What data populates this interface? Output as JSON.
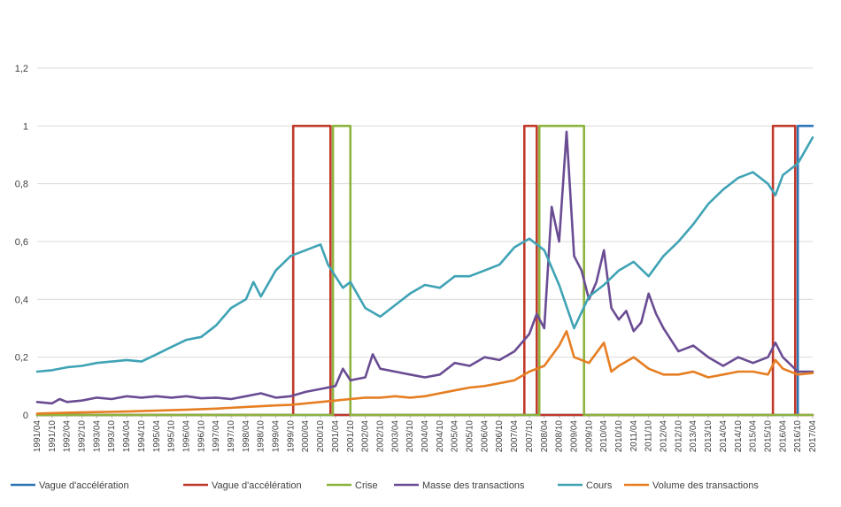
{
  "chart_data": {
    "type": "line",
    "title": "",
    "xlabel": "",
    "ylabel": "",
    "ylim": [
      0,
      1.2
    ],
    "yticks": [
      "0",
      "0,2",
      "0,4",
      "0,6",
      "0,8",
      "1",
      "1,2"
    ],
    "y_tick_values": [
      0,
      0.2,
      0.4,
      0.6,
      0.8,
      1.0,
      1.2
    ],
    "grid": "horizontal",
    "legend_position": "bottom",
    "x_start": "1991/04",
    "x_end": "2017/04",
    "x_tick_labels": [
      "1991/04",
      "1991/10",
      "1992/04",
      "1992/10",
      "1993/04",
      "1993/10",
      "1994/04",
      "1994/10",
      "1995/04",
      "1995/10",
      "1996/04",
      "1996/10",
      "1997/04",
      "1997/10",
      "1998/04",
      "1998/10",
      "1999/04",
      "1999/10",
      "2000/04",
      "2000/10",
      "2001/04",
      "2001/10",
      "2002/04",
      "2002/10",
      "2003/04",
      "2003/10",
      "2004/04",
      "2004/10",
      "2005/04",
      "2005/10",
      "2006/04",
      "2006/10",
      "2007/04",
      "2007/10",
      "2008/04",
      "2008/10",
      "2009/04",
      "2009/10",
      "2010/04",
      "2010/10",
      "2011/04",
      "2011/10",
      "2012/04",
      "2012/10",
      "2013/04",
      "2013/10",
      "2014/04",
      "2014/10",
      "2015/04",
      "2015/10",
      "2016/04",
      "2016/10",
      "2017/04"
    ],
    "series": [
      {
        "name": "Vague d'accélération",
        "color": "#2e75b6",
        "style": "step",
        "points": [
          [
            "1991/04",
            0
          ],
          [
            "2016/10",
            0
          ],
          [
            "2016/10",
            1
          ],
          [
            "2017/04",
            1
          ]
        ]
      },
      {
        "name": "Vague d'accélération",
        "color": "#c0392b",
        "style": "step",
        "points": [
          [
            "1991/04",
            0
          ],
          [
            "1999/11",
            0
          ],
          [
            "1999/11",
            1
          ],
          [
            "2001/02",
            1
          ],
          [
            "2001/02",
            0
          ],
          [
            "2007/08",
            0
          ],
          [
            "2007/08",
            1
          ],
          [
            "2008/01",
            1
          ],
          [
            "2008/01",
            0
          ],
          [
            "2015/12",
            0
          ],
          [
            "2015/12",
            1
          ],
          [
            "2016/09",
            1
          ],
          [
            "2016/09",
            0
          ],
          [
            "2017/04",
            0
          ]
        ]
      },
      {
        "name": "Crise",
        "color": "#8db33f",
        "style": "step",
        "points": [
          [
            "1991/04",
            0
          ],
          [
            "2001/03",
            0
          ],
          [
            "2001/03",
            1
          ],
          [
            "2001/10",
            1
          ],
          [
            "2001/10",
            0
          ],
          [
            "2008/02",
            0
          ],
          [
            "2008/02",
            1
          ],
          [
            "2009/08",
            1
          ],
          [
            "2009/08",
            0
          ],
          [
            "2017/04",
            0
          ]
        ]
      },
      {
        "name": "Masse des transactions",
        "color": "#6a4c93",
        "style": "line",
        "points": [
          [
            "1991/04",
            0.045
          ],
          [
            "1991/10",
            0.04
          ],
          [
            "1992/01",
            0.055
          ],
          [
            "1992/04",
            0.045
          ],
          [
            "1992/10",
            0.05
          ],
          [
            "1993/04",
            0.06
          ],
          [
            "1993/10",
            0.055
          ],
          [
            "1994/04",
            0.065
          ],
          [
            "1994/10",
            0.06
          ],
          [
            "1995/04",
            0.065
          ],
          [
            "1995/10",
            0.06
          ],
          [
            "1996/04",
            0.065
          ],
          [
            "1996/10",
            0.058
          ],
          [
            "1997/04",
            0.06
          ],
          [
            "1997/10",
            0.055
          ],
          [
            "1998/04",
            0.065
          ],
          [
            "1998/10",
            0.075
          ],
          [
            "1999/04",
            0.06
          ],
          [
            "1999/10",
            0.065
          ],
          [
            "2000/04",
            0.08
          ],
          [
            "2000/10",
            0.09
          ],
          [
            "2001/04",
            0.1
          ],
          [
            "2001/07",
            0.16
          ],
          [
            "2001/10",
            0.12
          ],
          [
            "2002/04",
            0.13
          ],
          [
            "2002/07",
            0.21
          ],
          [
            "2002/10",
            0.16
          ],
          [
            "2003/04",
            0.15
          ],
          [
            "2003/10",
            0.14
          ],
          [
            "2004/04",
            0.13
          ],
          [
            "2004/10",
            0.14
          ],
          [
            "2005/04",
            0.18
          ],
          [
            "2005/10",
            0.17
          ],
          [
            "2006/04",
            0.2
          ],
          [
            "2006/10",
            0.19
          ],
          [
            "2007/04",
            0.22
          ],
          [
            "2007/10",
            0.28
          ],
          [
            "2008/01",
            0.35
          ],
          [
            "2008/04",
            0.3
          ],
          [
            "2008/07",
            0.72
          ],
          [
            "2008/10",
            0.6
          ],
          [
            "2009/01",
            0.98
          ],
          [
            "2009/04",
            0.55
          ],
          [
            "2009/07",
            0.5
          ],
          [
            "2009/10",
            0.4
          ],
          [
            "2010/01",
            0.46
          ],
          [
            "2010/04",
            0.57
          ],
          [
            "2010/07",
            0.37
          ],
          [
            "2010/10",
            0.33
          ],
          [
            "2011/01",
            0.36
          ],
          [
            "2011/04",
            0.29
          ],
          [
            "2011/07",
            0.32
          ],
          [
            "2011/10",
            0.42
          ],
          [
            "2012/01",
            0.35
          ],
          [
            "2012/04",
            0.3
          ],
          [
            "2012/10",
            0.22
          ],
          [
            "2013/04",
            0.24
          ],
          [
            "2013/10",
            0.2
          ],
          [
            "2014/04",
            0.17
          ],
          [
            "2014/10",
            0.2
          ],
          [
            "2015/04",
            0.18
          ],
          [
            "2015/10",
            0.2
          ],
          [
            "2016/01",
            0.25
          ],
          [
            "2016/04",
            0.2
          ],
          [
            "2016/10",
            0.15
          ],
          [
            "2017/04",
            0.15
          ]
        ]
      },
      {
        "name": "Cours",
        "color": "#3fa3b5",
        "style": "line",
        "points": [
          [
            "1991/04",
            0.15
          ],
          [
            "1991/10",
            0.155
          ],
          [
            "1992/04",
            0.165
          ],
          [
            "1992/10",
            0.17
          ],
          [
            "1993/04",
            0.18
          ],
          [
            "1993/10",
            0.185
          ],
          [
            "1994/04",
            0.19
          ],
          [
            "1994/10",
            0.185
          ],
          [
            "1995/04",
            0.21
          ],
          [
            "1995/10",
            0.235
          ],
          [
            "1996/04",
            0.26
          ],
          [
            "1996/10",
            0.27
          ],
          [
            "1997/04",
            0.31
          ],
          [
            "1997/10",
            0.37
          ],
          [
            "1998/04",
            0.4
          ],
          [
            "1998/07",
            0.46
          ],
          [
            "1998/10",
            0.41
          ],
          [
            "1999/04",
            0.5
          ],
          [
            "1999/10",
            0.55
          ],
          [
            "2000/04",
            0.57
          ],
          [
            "2000/10",
            0.59
          ],
          [
            "2001/01",
            0.52
          ],
          [
            "2001/04",
            0.48
          ],
          [
            "2001/07",
            0.44
          ],
          [
            "2001/10",
            0.46
          ],
          [
            "2002/04",
            0.37
          ],
          [
            "2002/10",
            0.34
          ],
          [
            "2003/04",
            0.38
          ],
          [
            "2003/10",
            0.42
          ],
          [
            "2004/04",
            0.45
          ],
          [
            "2004/10",
            0.44
          ],
          [
            "2005/04",
            0.48
          ],
          [
            "2005/10",
            0.48
          ],
          [
            "2006/04",
            0.5
          ],
          [
            "2006/10",
            0.52
          ],
          [
            "2007/04",
            0.58
          ],
          [
            "2007/10",
            0.61
          ],
          [
            "2008/04",
            0.57
          ],
          [
            "2008/10",
            0.45
          ],
          [
            "2009/04",
            0.3
          ],
          [
            "2009/10",
            0.41
          ],
          [
            "2010/04",
            0.45
          ],
          [
            "2010/10",
            0.5
          ],
          [
            "2011/04",
            0.53
          ],
          [
            "2011/10",
            0.48
          ],
          [
            "2012/04",
            0.55
          ],
          [
            "2012/10",
            0.6
          ],
          [
            "2013/04",
            0.66
          ],
          [
            "2013/10",
            0.73
          ],
          [
            "2014/04",
            0.78
          ],
          [
            "2014/10",
            0.82
          ],
          [
            "2015/04",
            0.84
          ],
          [
            "2015/10",
            0.8
          ],
          [
            "2016/01",
            0.76
          ],
          [
            "2016/04",
            0.83
          ],
          [
            "2016/10",
            0.87
          ],
          [
            "2017/04",
            0.96
          ]
        ]
      },
      {
        "name": "Volume des transactions",
        "color": "#e67e22",
        "style": "line",
        "points": [
          [
            "1991/04",
            0.005
          ],
          [
            "1992/04",
            0.008
          ],
          [
            "1993/04",
            0.01
          ],
          [
            "1994/04",
            0.012
          ],
          [
            "1995/04",
            0.015
          ],
          [
            "1996/04",
            0.018
          ],
          [
            "1997/04",
            0.022
          ],
          [
            "1998/04",
            0.028
          ],
          [
            "1999/04",
            0.033
          ],
          [
            "1999/10",
            0.035
          ],
          [
            "2000/04",
            0.04
          ],
          [
            "2000/10",
            0.045
          ],
          [
            "2001/04",
            0.05
          ],
          [
            "2001/10",
            0.055
          ],
          [
            "2002/04",
            0.06
          ],
          [
            "2002/10",
            0.06
          ],
          [
            "2003/04",
            0.065
          ],
          [
            "2003/10",
            0.06
          ],
          [
            "2004/04",
            0.065
          ],
          [
            "2004/10",
            0.075
          ],
          [
            "2005/04",
            0.085
          ],
          [
            "2005/10",
            0.095
          ],
          [
            "2006/04",
            0.1
          ],
          [
            "2006/10",
            0.11
          ],
          [
            "2007/04",
            0.12
          ],
          [
            "2007/10",
            0.15
          ],
          [
            "2008/04",
            0.17
          ],
          [
            "2008/10",
            0.24
          ],
          [
            "2009/01",
            0.29
          ],
          [
            "2009/04",
            0.2
          ],
          [
            "2009/10",
            0.18
          ],
          [
            "2010/04",
            0.25
          ],
          [
            "2010/07",
            0.15
          ],
          [
            "2010/10",
            0.17
          ],
          [
            "2011/04",
            0.2
          ],
          [
            "2011/10",
            0.16
          ],
          [
            "2012/04",
            0.14
          ],
          [
            "2012/10",
            0.14
          ],
          [
            "2013/04",
            0.15
          ],
          [
            "2013/10",
            0.13
          ],
          [
            "2014/04",
            0.14
          ],
          [
            "2014/10",
            0.15
          ],
          [
            "2015/04",
            0.15
          ],
          [
            "2015/10",
            0.14
          ],
          [
            "2016/01",
            0.19
          ],
          [
            "2016/04",
            0.16
          ],
          [
            "2016/10",
            0.14
          ],
          [
            "2017/04",
            0.145
          ]
        ]
      }
    ]
  }
}
